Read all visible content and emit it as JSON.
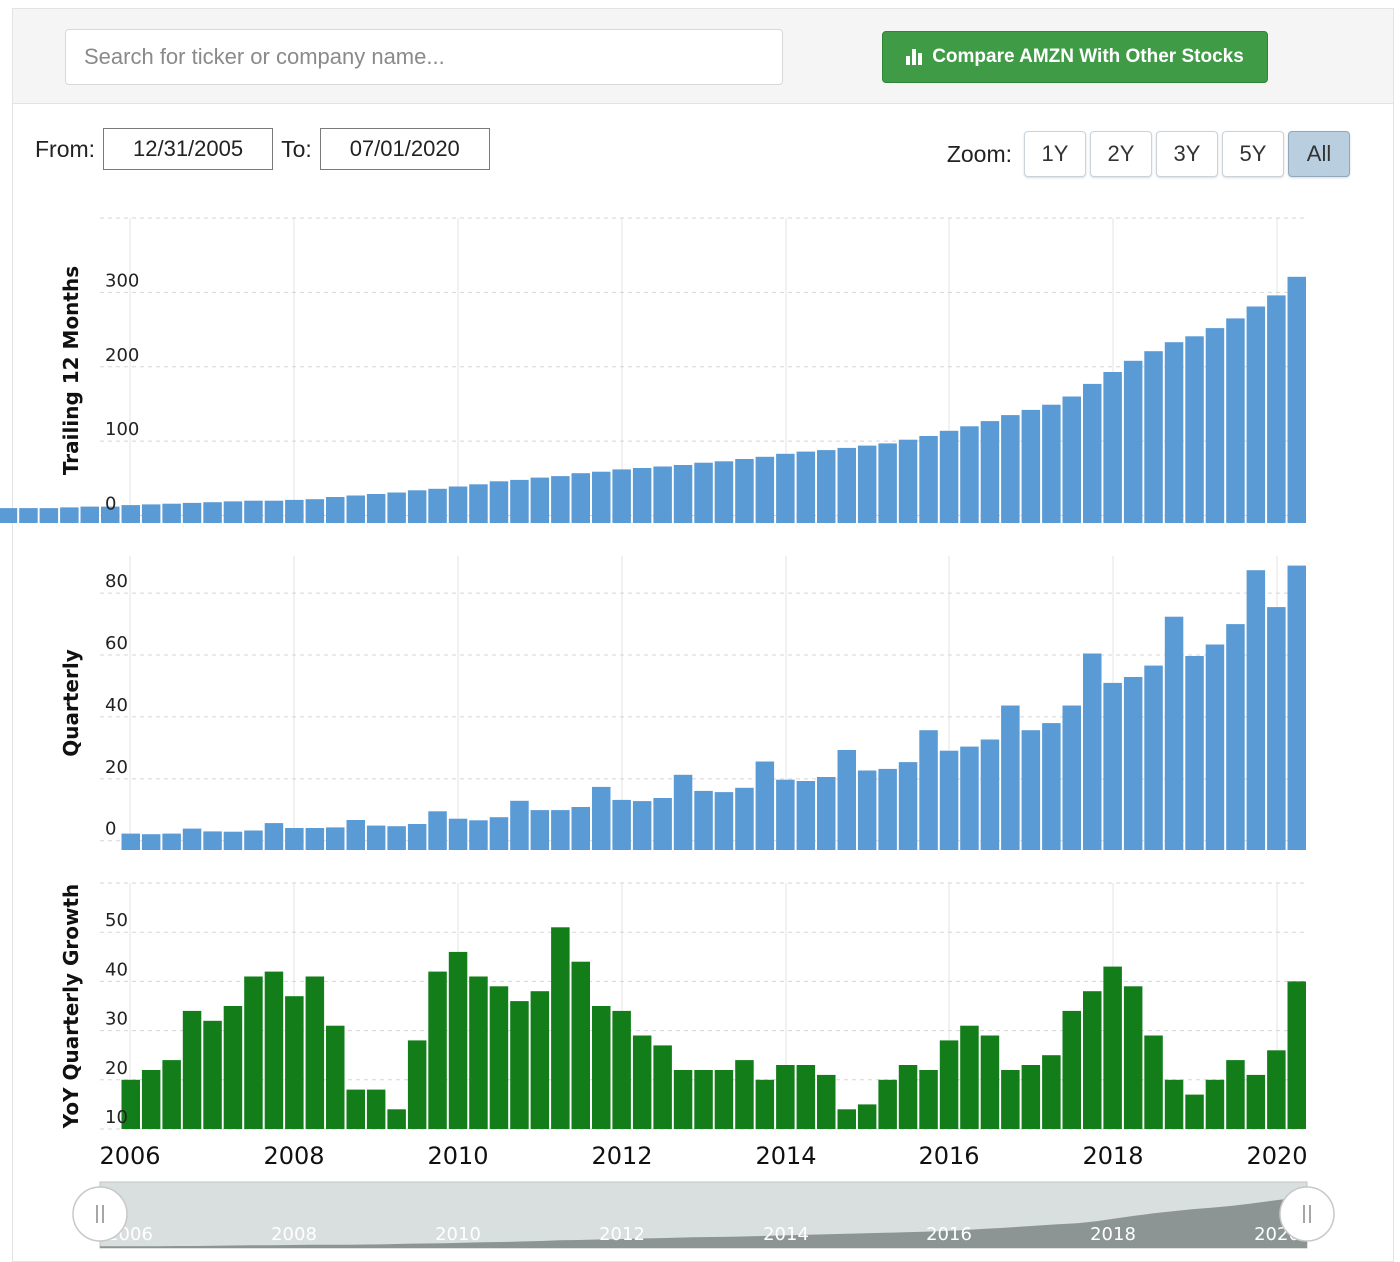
{
  "search": {
    "placeholder": "Search for ticker or company name..."
  },
  "compare_button": {
    "label": "Compare AMZN With Other Stocks",
    "icon": "bar-chart-icon",
    "color": "#3f9b46"
  },
  "date_range": {
    "from_label": "From:",
    "from_value": "12/31/2005",
    "to_label": "To:",
    "to_value": "07/01/2020"
  },
  "zoom": {
    "label": "Zoom:",
    "options": [
      "1Y",
      "2Y",
      "3Y",
      "5Y",
      "All"
    ],
    "selected": "All"
  },
  "navigator_icons": {
    "left": "left-drag-handle-icon",
    "right": "right-drag-handle-icon"
  },
  "chart_data": {
    "type": "bar",
    "x_axis": {
      "ticks": [
        "2006",
        "2008",
        "2010",
        "2012",
        "2014",
        "2016",
        "2018",
        "2020"
      ]
    },
    "panels": [
      {
        "ylabel": "Trailing 12 Months",
        "yticks": [
          0,
          100,
          200,
          300
        ],
        "ylim": [
          -10,
          400
        ],
        "color": "#5b9bd5",
        "values": [
          10,
          10,
          10,
          11,
          12,
          12,
          14,
          15,
          16,
          17,
          18,
          19,
          20,
          20,
          21,
          22,
          25,
          27,
          29,
          31,
          34,
          36,
          39,
          42,
          46,
          48,
          51,
          53,
          57,
          59,
          62,
          64,
          66,
          68,
          71,
          73,
          76,
          79,
          83,
          86,
          88,
          91,
          94,
          97,
          102,
          107,
          114,
          120,
          127,
          135,
          142,
          149,
          160,
          177,
          193,
          208,
          221,
          233,
          241,
          252,
          265,
          281,
          296,
          321
        ]
      },
      {
        "ylabel": "Quarterly",
        "yticks": [
          0,
          20,
          40,
          60,
          80
        ],
        "ylim": [
          -3,
          92
        ],
        "color": "#5b9bd5",
        "values": [
          2.3,
          2.1,
          2.3,
          3.9,
          3.0,
          2.9,
          3.3,
          5.7,
          4.1,
          4.1,
          4.3,
          6.7,
          4.9,
          4.7,
          5.4,
          9.5,
          7.1,
          6.6,
          7.6,
          12.9,
          9.9,
          9.9,
          10.9,
          17.4,
          13.2,
          12.8,
          13.8,
          21.3,
          16.1,
          15.7,
          17.1,
          25.6,
          19.7,
          19.3,
          20.6,
          29.3,
          22.7,
          23.2,
          25.4,
          35.7,
          29.1,
          30.4,
          32.7,
          43.7,
          35.7,
          38.0,
          43.7,
          60.5,
          51.0,
          52.9,
          56.6,
          72.4,
          59.7,
          63.4,
          70.0,
          87.4,
          75.5,
          88.9
        ]
      },
      {
        "ylabel": "YoY Quarterly Growth",
        "yticks": [
          10,
          20,
          30,
          40,
          50
        ],
        "ylim": [
          10,
          60
        ],
        "color": "#137d1a",
        "values": [
          20,
          22,
          24,
          34,
          32,
          35,
          41,
          42,
          37,
          41,
          31,
          18,
          18,
          14,
          28,
          42,
          46,
          41,
          39,
          36,
          38,
          51,
          44,
          35,
          34,
          29,
          27,
          22,
          22,
          22,
          24,
          20,
          23,
          23,
          21,
          14,
          15,
          20,
          23,
          22,
          28,
          31,
          29,
          22,
          23,
          25,
          34,
          38,
          43,
          39,
          29,
          20,
          17,
          20,
          24,
          21,
          26,
          40
        ]
      }
    ],
    "navigator": {
      "labels": [
        "2006",
        "2008",
        "2010",
        "2012",
        "2014",
        "2016",
        "2018",
        "2020"
      ]
    }
  }
}
